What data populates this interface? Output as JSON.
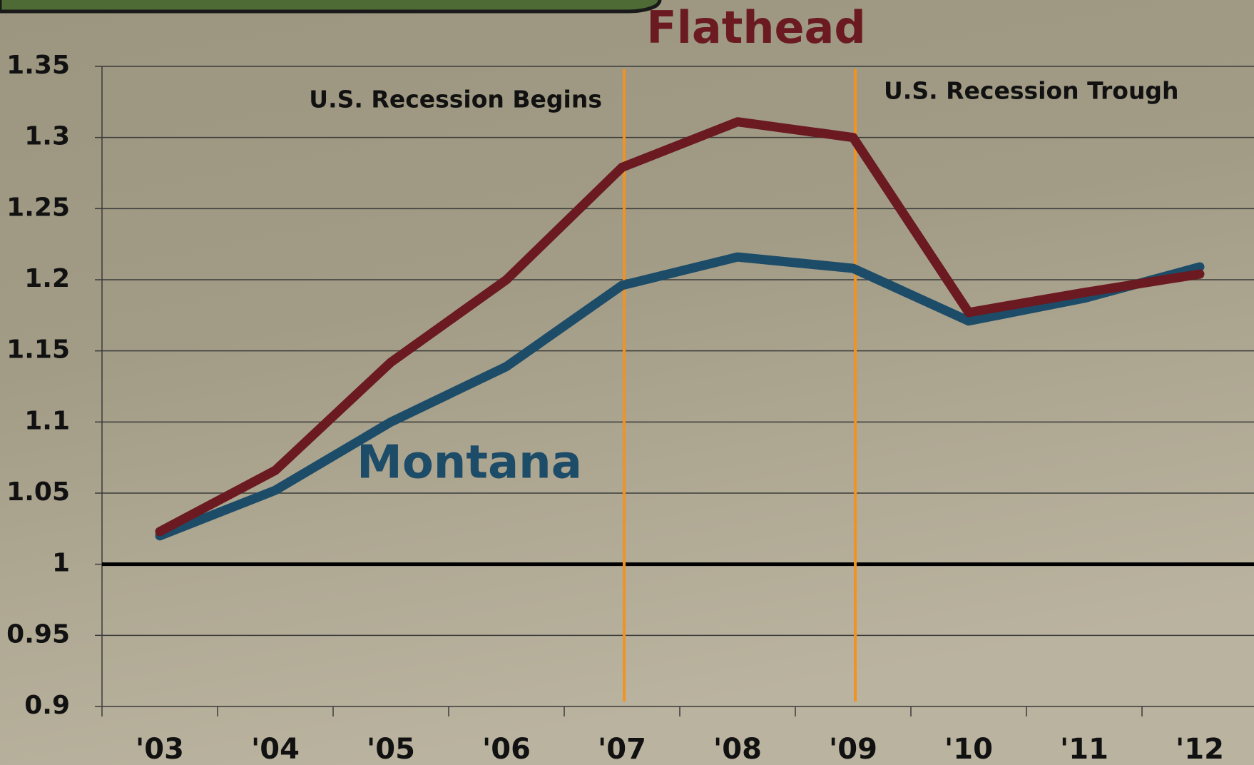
{
  "chart_data": {
    "type": "line",
    "categories": [
      "'03",
      "'04",
      "'05",
      "'06",
      "'07",
      "'08",
      "'09",
      "'10",
      "'11",
      "'12"
    ],
    "series": [
      {
        "name": "Flathead",
        "color": "#6a1a20",
        "values": [
          1.023,
          1.066,
          1.142,
          1.2,
          1.279,
          1.311,
          1.3,
          1.177,
          1.191,
          1.204
        ]
      },
      {
        "name": "Montana",
        "color": "#1d4c68",
        "values": [
          1.02,
          1.052,
          1.1,
          1.139,
          1.196,
          1.216,
          1.208,
          1.171,
          1.187,
          1.209
        ]
      }
    ],
    "ylim": [
      0.9,
      1.35
    ],
    "yticks": [
      0.9,
      0.95,
      1,
      1.05,
      1.1,
      1.15,
      1.2,
      1.25,
      1.3,
      1.35
    ],
    "grid": true,
    "baseline": 1,
    "annotations": [
      {
        "text": "U.S. Recession Begins",
        "x": "'07",
        "color": "#f39221"
      },
      {
        "text": "U.S. Recession Trough",
        "x": "'09",
        "color": "#f39221"
      }
    ]
  }
}
